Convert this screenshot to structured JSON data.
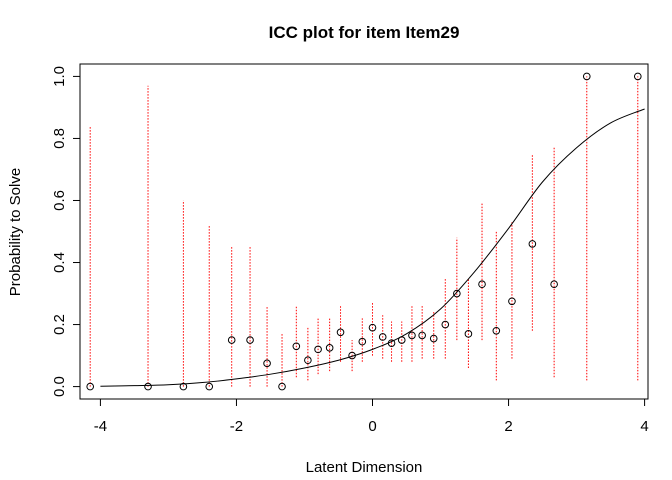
{
  "chart_data": {
    "type": "scatter",
    "title": "ICC plot for item  Item29",
    "xlabel": "Latent Dimension",
    "ylabel": "Probability to Solve",
    "xlim": [
      -4.3,
      4.05
    ],
    "ylim": [
      -0.04,
      1.04
    ],
    "x_ticks": [
      -4,
      -2,
      0,
      2,
      4
    ],
    "x_tick_labels": [
      "-4",
      "-2",
      "0",
      "2",
      "4"
    ],
    "y_ticks": [
      0.0,
      0.2,
      0.4,
      0.6,
      0.8,
      1.0
    ],
    "y_tick_labels": [
      "0.0",
      "0.2",
      "0.4",
      "0.6",
      "0.8",
      "1.0"
    ],
    "grid": false,
    "legend": "none",
    "curve": {
      "name": "",
      "x": [
        -4.0,
        -3.5,
        -3.0,
        -2.5,
        -2.0,
        -1.5,
        -1.0,
        -0.5,
        0.0,
        0.5,
        1.0,
        1.5,
        2.0,
        2.5,
        3.0,
        3.5,
        4.0
      ],
      "y": [
        0.001,
        0.003,
        0.006,
        0.013,
        0.025,
        0.04,
        0.06,
        0.085,
        0.12,
        0.17,
        0.25,
        0.37,
        0.51,
        0.66,
        0.77,
        0.85,
        0.895
      ]
    },
    "points": {
      "x": [
        -4.15,
        -3.3,
        -2.78,
        -2.4,
        -2.07,
        -1.8,
        -1.55,
        -1.33,
        -1.12,
        -0.95,
        -0.8,
        -0.63,
        -0.47,
        -0.3,
        -0.15,
        0.0,
        0.15,
        0.28,
        0.43,
        0.58,
        0.73,
        0.9,
        1.07,
        1.24,
        1.41,
        1.61,
        1.82,
        2.05,
        2.35,
        2.67,
        3.15,
        3.9
      ],
      "y": [
        0.0,
        0.0,
        0.0,
        0.0,
        0.15,
        0.15,
        0.075,
        0.0,
        0.13,
        0.085,
        0.12,
        0.125,
        0.175,
        0.1,
        0.145,
        0.19,
        0.16,
        0.14,
        0.15,
        0.165,
        0.165,
        0.155,
        0.2,
        0.3,
        0.17,
        0.33,
        0.18,
        0.275,
        0.46,
        0.33,
        1.0,
        1.0
      ]
    },
    "error_bars": {
      "color": "#ff0000",
      "lower": [
        0.0,
        0.0,
        0.0,
        0.0,
        0.0,
        0.0,
        0.0,
        0.0,
        0.03,
        0.02,
        0.04,
        0.05,
        0.08,
        0.05,
        0.08,
        0.1,
        0.09,
        0.08,
        0.08,
        0.08,
        0.09,
        0.09,
        0.09,
        0.15,
        0.06,
        0.15,
        0.02,
        0.09,
        0.18,
        0.03,
        0.02,
        0.02
      ],
      "upper": [
        0.84,
        0.97,
        0.6,
        0.52,
        0.45,
        0.45,
        0.26,
        0.17,
        0.26,
        0.19,
        0.22,
        0.22,
        0.26,
        0.15,
        0.22,
        0.27,
        0.23,
        0.21,
        0.21,
        0.26,
        0.26,
        0.24,
        0.35,
        0.48,
        0.35,
        0.59,
        0.5,
        0.53,
        0.75,
        0.77,
        1.0,
        1.0
      ]
    },
    "colors": {
      "curve": "#000000",
      "points": "#000000",
      "error_bars": "#ff0000",
      "axes": "#000000"
    }
  }
}
